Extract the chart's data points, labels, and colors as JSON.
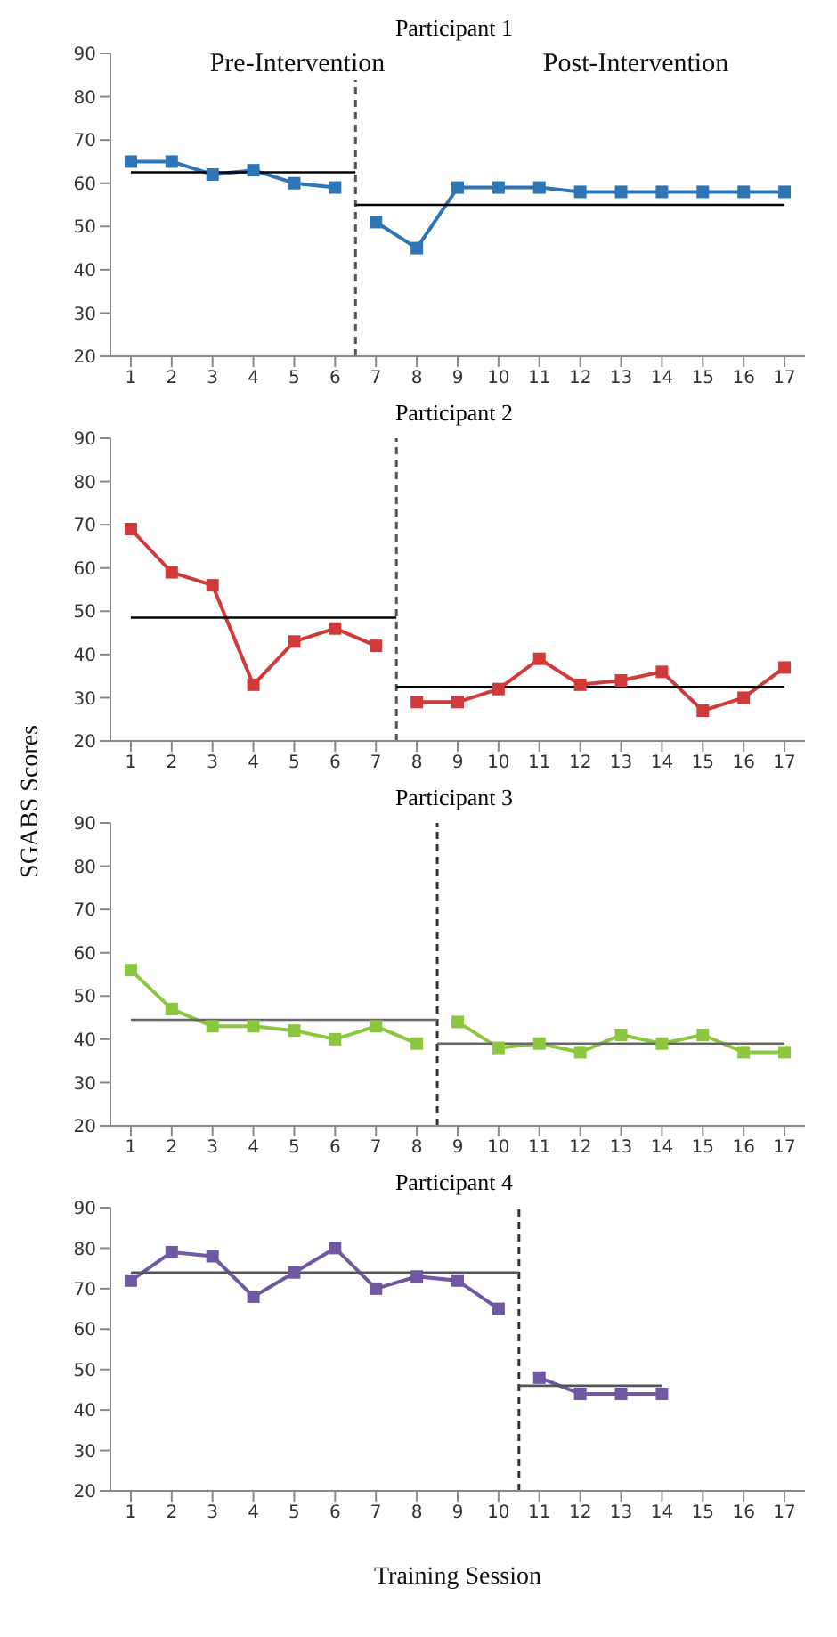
{
  "chart_data": [
    {
      "type": "line",
      "title": "Participant 1",
      "xlim": [
        0.5,
        17.5
      ],
      "xticks": [
        1,
        2,
        3,
        4,
        5,
        6,
        7,
        8,
        9,
        10,
        11,
        12,
        13,
        14,
        15,
        16,
        17
      ],
      "ylim": [
        20,
        90
      ],
      "yticks": [
        20,
        30,
        40,
        50,
        60,
        70,
        80,
        90
      ],
      "grid": false,
      "legend": false,
      "series": [
        {
          "color": "#2e75b6",
          "marker": "square",
          "x": [
            1,
            2,
            3,
            4,
            5,
            6
          ],
          "values": [
            65,
            65,
            62,
            63,
            60,
            59
          ]
        },
        {
          "color": "#2e75b6",
          "marker": "square",
          "x": [
            7,
            8,
            9,
            10,
            11,
            12,
            13,
            14,
            15,
            16,
            17
          ],
          "values": [
            51,
            45,
            59,
            59,
            59,
            58,
            58,
            58,
            58,
            58,
            58
          ]
        },
        {
          "color": "#000000",
          "marker": "none",
          "x": [
            1,
            6.5
          ],
          "values": [
            62.5,
            62.5
          ]
        },
        {
          "color": "#000000",
          "marker": "none",
          "x": [
            6.5,
            17
          ],
          "values": [
            55,
            55
          ]
        }
      ],
      "ref_lines": [
        {
          "axis": "x",
          "value": 6.5,
          "color": "#555555",
          "line_style": "dashed"
        }
      ],
      "annotations": [
        "Pre-Intervention",
        "Post-Intervention"
      ]
    },
    {
      "type": "line",
      "title": "Participant 2",
      "xlim": [
        0.5,
        17.5
      ],
      "xticks": [
        1,
        2,
        3,
        4,
        5,
        6,
        7,
        8,
        9,
        10,
        11,
        12,
        13,
        14,
        15,
        16,
        17
      ],
      "ylim": [
        20,
        90
      ],
      "yticks": [
        20,
        30,
        40,
        50,
        60,
        70,
        80,
        90
      ],
      "grid": false,
      "legend": false,
      "series": [
        {
          "color": "#d13a3a",
          "marker": "square",
          "x": [
            1,
            2,
            3,
            4,
            5,
            6,
            7
          ],
          "values": [
            69,
            59,
            56,
            33,
            43,
            46,
            42
          ]
        },
        {
          "color": "#d13a3a",
          "marker": "square",
          "x": [
            8,
            9,
            10,
            11,
            12,
            13,
            14,
            15,
            16,
            17
          ],
          "values": [
            29,
            29,
            32,
            39,
            33,
            34,
            36,
            27,
            30,
            37
          ]
        },
        {
          "color": "#000000",
          "marker": "none",
          "x": [
            1,
            7.5
          ],
          "values": [
            48.5,
            48.5
          ]
        },
        {
          "color": "#000000",
          "marker": "none",
          "x": [
            7.5,
            17
          ],
          "values": [
            32.5,
            32.5
          ]
        }
      ],
      "ref_lines": [
        {
          "axis": "x",
          "value": 7.5,
          "color": "#555555",
          "line_style": "dashed"
        }
      ]
    },
    {
      "type": "line",
      "title": "Participant 3",
      "ylabel": "SGABS Scores",
      "xlim": [
        0.5,
        17.5
      ],
      "xticks": [
        1,
        2,
        3,
        4,
        5,
        6,
        7,
        8,
        9,
        10,
        11,
        12,
        13,
        14,
        15,
        16,
        17
      ],
      "ylim": [
        20,
        90
      ],
      "yticks": [
        20,
        30,
        40,
        50,
        60,
        70,
        80,
        90
      ],
      "grid": false,
      "legend": false,
      "series": [
        {
          "color": "#8cc63f",
          "marker": "square",
          "x": [
            1,
            2,
            3,
            4,
            5,
            6,
            7,
            8
          ],
          "values": [
            56,
            47,
            43,
            43,
            42,
            40,
            43,
            39
          ]
        },
        {
          "color": "#8cc63f",
          "marker": "square",
          "x": [
            9,
            10,
            11,
            12,
            13,
            14,
            15,
            16,
            17
          ],
          "values": [
            44,
            38,
            39,
            37,
            41,
            39,
            41,
            37,
            37
          ]
        },
        {
          "color": "#666666",
          "marker": "none",
          "x": [
            1,
            8.5
          ],
          "values": [
            44.5,
            44.5
          ]
        },
        {
          "color": "#666666",
          "marker": "none",
          "x": [
            8.5,
            17
          ],
          "values": [
            39,
            39
          ]
        }
      ],
      "ref_lines": [
        {
          "axis": "x",
          "value": 8.5,
          "color": "#333333",
          "line_style": "dashed"
        }
      ]
    },
    {
      "type": "line",
      "title": "Participant 4",
      "xlabel": "Training Session",
      "xlim": [
        0.5,
        17.5
      ],
      "xticks": [
        1,
        2,
        3,
        4,
        5,
        6,
        7,
        8,
        9,
        10,
        11,
        12,
        13,
        14,
        15,
        16,
        17
      ],
      "ylim": [
        20,
        90
      ],
      "yticks": [
        20,
        30,
        40,
        50,
        60,
        70,
        80,
        90
      ],
      "grid": false,
      "legend": false,
      "series": [
        {
          "color": "#7058a3",
          "marker": "square",
          "x": [
            1,
            2,
            3,
            4,
            5,
            6,
            7,
            8,
            9,
            10
          ],
          "values": [
            72,
            79,
            78,
            68,
            74,
            80,
            70,
            73,
            72,
            65
          ]
        },
        {
          "color": "#7058a3",
          "marker": "square",
          "x": [
            11,
            12,
            13,
            14
          ],
          "values": [
            48,
            44,
            44,
            44
          ]
        },
        {
          "color": "#555555",
          "marker": "none",
          "x": [
            1,
            10.5
          ],
          "values": [
            74,
            74
          ]
        },
        {
          "color": "#555555",
          "marker": "none",
          "x": [
            10.5,
            14
          ],
          "values": [
            46,
            46
          ]
        }
      ],
      "ref_lines": [
        {
          "axis": "x",
          "value": 10.5,
          "color": "#333333",
          "line_style": "dashed"
        }
      ]
    }
  ]
}
